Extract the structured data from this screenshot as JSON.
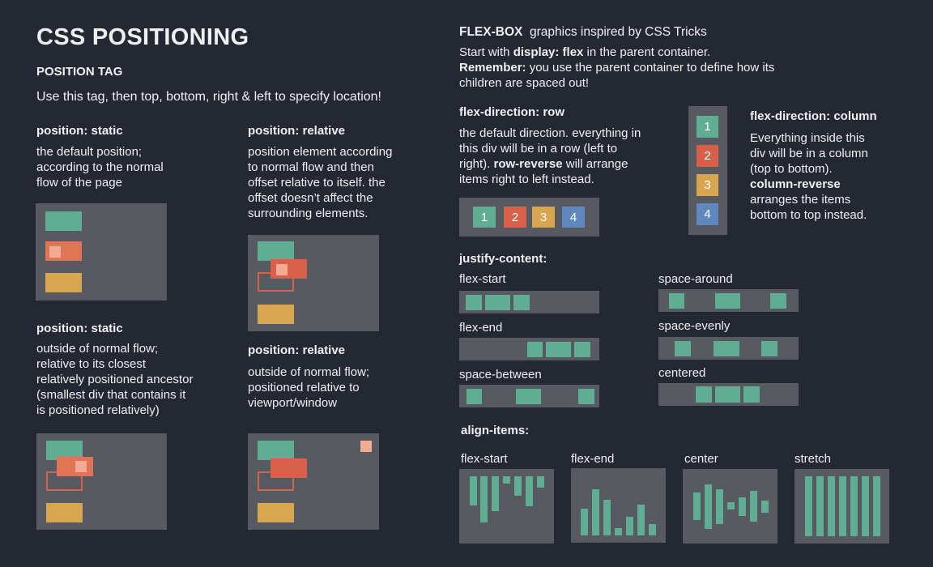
{
  "title": "CSS POSITIONING",
  "position_tag": {
    "heading": "POSITION TAG",
    "intro": "Use this tag, then top, bottom, right & left to specify location!"
  },
  "static1": {
    "heading": "position: static",
    "lines": [
      "the default position;",
      "according to the normal",
      "flow of the page"
    ]
  },
  "relative1": {
    "heading": "position: relative",
    "lines": [
      "position element according",
      "to normal flow and then",
      "offset relative to itself. the",
      "offset doesn’t affect the",
      "surrounding elements."
    ]
  },
  "static2": {
    "heading": "position: static",
    "lines": [
      "outside of normal flow;",
      "relative to its closest",
      "relatively positioned ancestor",
      "(smallest div that contains it",
      "is positioned relatively)"
    ]
  },
  "relative2": {
    "heading": "position: relative",
    "lines": [
      "outside of normal flow;",
      "positioned relative to",
      "viewport/window"
    ]
  },
  "flexbox": {
    "title_bold": "FLEX-BOX",
    "title_rest": "graphics inspired by CSS Tricks",
    "line1_pre": "Start with ",
    "line1_bold": "display: flex",
    "line1_post": " in the parent container.",
    "line2_bold": "Remember:",
    "line2_post": " you use the parent container to define how its",
    "line3": "children are spaced out!"
  },
  "flex_row": {
    "heading": "flex-direction: row",
    "line1": "the default direction. everything in",
    "line2": "this div will be in a row (left to",
    "line3_pre": "right). ",
    "line3_bold": "row-reverse",
    "line3_post": " will arrange",
    "line4": "items right to left instead.",
    "items": [
      "1",
      "2",
      "3",
      "4"
    ]
  },
  "flex_column": {
    "heading": "flex-direction: column",
    "line1": "Everything inside this",
    "line2": "div will be in a column",
    "line3": "(top to bottom).",
    "line4_bold": "column-reverse",
    "line5": "arranges the items",
    "line6": "bottom to top instead.",
    "items": [
      "1",
      "2",
      "3",
      "4"
    ]
  },
  "justify": {
    "heading": "justify-content:",
    "labels": {
      "flex_start": "flex-start",
      "flex_end": "flex-end",
      "space_between": "space-between",
      "space_around": "space-around",
      "space_evenly": "space-evenly",
      "centered": "centered"
    }
  },
  "align": {
    "heading": "align-items:",
    "labels": {
      "flex_start": "flex-start",
      "flex_end": "flex-end",
      "center": "center",
      "stretch": "stretch"
    }
  },
  "colors": {
    "background": "#242832",
    "panel": "#575b61",
    "green": "#5fae93",
    "red": "#d85f4a",
    "yellow": "#d8a550",
    "pink": "#f3ab93",
    "blue": "#5f88bc"
  }
}
